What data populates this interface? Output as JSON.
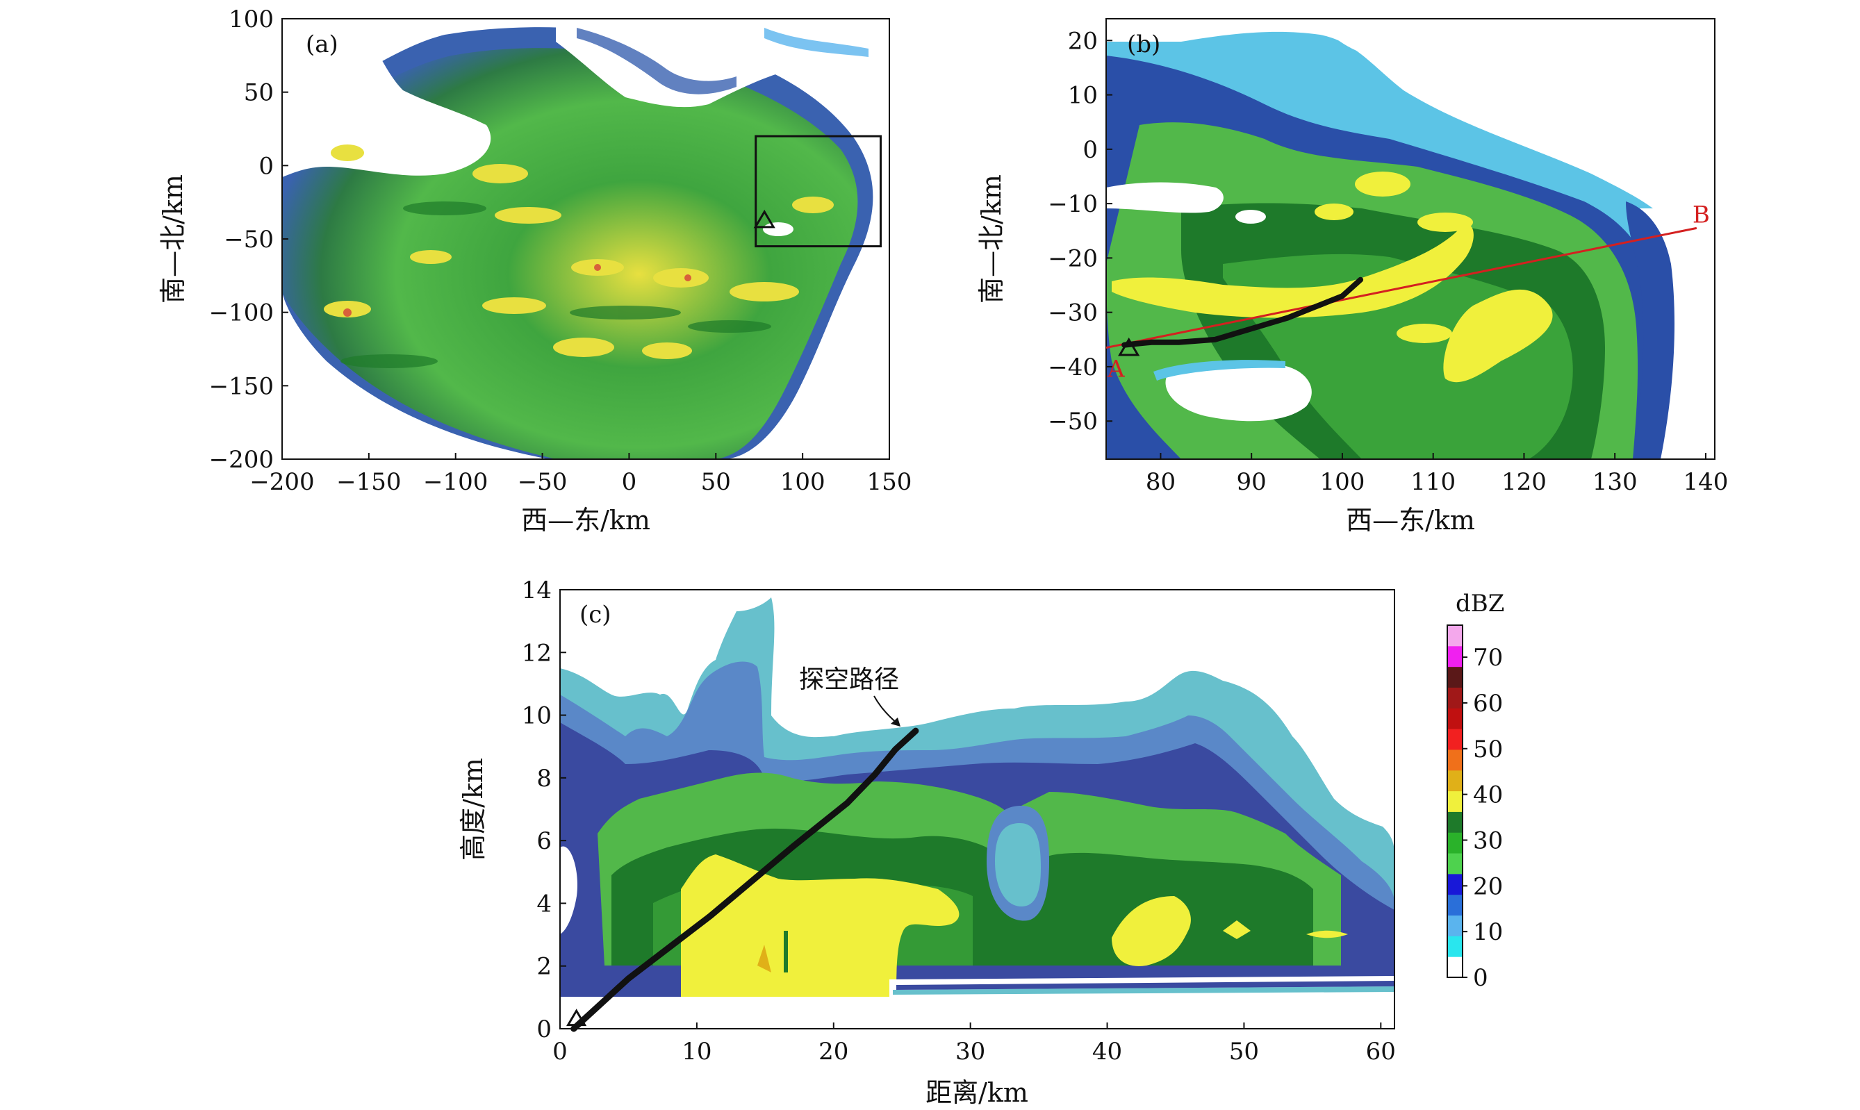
{
  "chart_data": [
    {
      "panel": "(a)",
      "type": "heatmap",
      "xlabel": "西—东/km",
      "ylabel": "南—北/km",
      "xlim": [
        -200,
        150
      ],
      "ylim": [
        -200,
        100
      ],
      "xticks": [
        -200,
        -150,
        -100,
        -50,
        0,
        50,
        100,
        150
      ],
      "yticks": [
        -200,
        -150,
        -100,
        -50,
        0,
        50,
        100
      ],
      "subregion_box": {
        "x": [
          73,
          145
        ],
        "y": [
          -55,
          20
        ]
      },
      "sounding_site": {
        "x": 78,
        "y": -37
      }
    },
    {
      "panel": "(b)",
      "type": "heatmap",
      "xlabel": "西—东/km",
      "ylabel": "南—北/km",
      "xlim": [
        74,
        141
      ],
      "ylim": [
        -57,
        24
      ],
      "xticks": [
        80,
        90,
        100,
        110,
        120,
        130,
        140
      ],
      "yticks": [
        -50,
        -40,
        -30,
        -20,
        -10,
        0,
        10,
        20
      ],
      "section_line": {
        "start_label": "A",
        "end_label": "B",
        "start": [
          74,
          -36.5
        ],
        "end": [
          139,
          -14.5
        ]
      },
      "sounding_path": {
        "x": [
          76,
          79,
          82,
          86,
          90,
          94,
          97,
          100,
          102
        ],
        "y": [
          -36,
          -35.5,
          -35.5,
          -35,
          -33,
          -31,
          -29,
          -27,
          -24
        ]
      },
      "sounding_site": {
        "x": 76.5,
        "y": -36.5
      }
    },
    {
      "panel": "(c)",
      "type": "heatmap",
      "xlabel": "距离/km",
      "ylabel": "高度/km",
      "xlim": [
        0,
        61
      ],
      "ylim": [
        0,
        14
      ],
      "xticks": [
        0,
        10,
        20,
        30,
        40,
        50,
        60
      ],
      "yticks": [
        0,
        2,
        4,
        6,
        8,
        10,
        12,
        14
      ],
      "annotation": "探空路径",
      "sounding_path": {
        "x": [
          1,
          3,
          5,
          8,
          11,
          14,
          17,
          19,
          21,
          23,
          24.5,
          26
        ],
        "y": [
          0,
          0.8,
          1.6,
          2.6,
          3.6,
          4.7,
          5.8,
          6.5,
          7.2,
          8.1,
          8.9,
          9.5
        ]
      },
      "sounding_site": {
        "x": 1.2,
        "y": 0.2
      }
    }
  ],
  "colorbar": {
    "title": "dBZ",
    "ticks": [
      0,
      10,
      20,
      30,
      40,
      50,
      60,
      70
    ],
    "colors": [
      "#ffffff",
      "#29e6ee",
      "#5ab4ee",
      "#2a6fd9",
      "#1818d8",
      "#4ed24e",
      "#2ab22a",
      "#1e7a2a",
      "#f0f03c",
      "#e0b018",
      "#f0701a",
      "#f22020",
      "#c01010",
      "#a01818",
      "#5a1818",
      "#f020f0",
      "#f4a8ec"
    ]
  }
}
